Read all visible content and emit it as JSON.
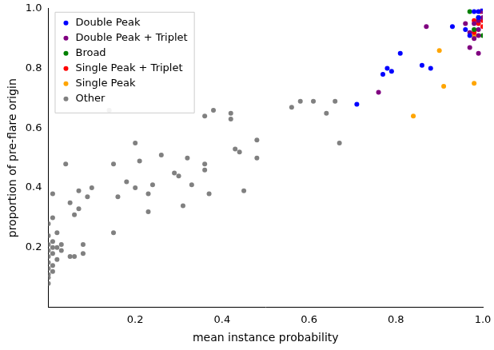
{
  "chart_data": {
    "type": "scatter",
    "x_label": "mean instance probability",
    "y_label": "proportion of pre-flare origin",
    "xlim": [
      0,
      1
    ],
    "ylim": [
      0,
      1
    ],
    "xticks": [
      0.2,
      0.4,
      0.6,
      0.8,
      {
        "value": 1,
        "label": "1.0"
      }
    ],
    "yticks": [
      0.2,
      0.4,
      0.6,
      0.8,
      {
        "value": 1,
        "label": "1.0"
      }
    ],
    "grid": false,
    "legend": "upper left",
    "marker": "circle",
    "series": [
      {
        "name": "Double Peak",
        "color": "#0000ff",
        "x": [
          0.71,
          0.77,
          0.78,
          0.79,
          0.81,
          0.86,
          0.88,
          0.93,
          0.96,
          0.97,
          0.98,
          0.99,
          1.0,
          0.99
        ],
        "values": [
          0.68,
          0.78,
          0.8,
          0.79,
          0.85,
          0.81,
          0.8,
          0.94,
          0.93,
          0.91,
          0.99,
          0.99,
          1.0,
          0.97
        ]
      },
      {
        "name": "Double Peak + Triplet",
        "color": "#800080",
        "x": [
          0.76,
          0.87,
          0.97,
          0.97,
          0.98,
          0.99,
          0.99,
          1.0,
          0.99,
          1.0,
          0.96,
          0.99,
          0.98
        ],
        "values": [
          0.72,
          0.94,
          0.92,
          0.87,
          0.95,
          0.96,
          0.85,
          0.97,
          0.93,
          0.99,
          0.95,
          0.91,
          0.9
        ]
      },
      {
        "name": "Broad",
        "color": "#008000",
        "x": [
          0.97,
          0.99,
          1.0,
          0.98
        ],
        "values": [
          0.99,
          0.97,
          0.91,
          0.93
        ]
      },
      {
        "name": "Single Peak + Triplet",
        "color": "#ff0000",
        "x": [
          0.98,
          0.99,
          1.0,
          0.995,
          0.98,
          1.0
        ],
        "values": [
          0.92,
          0.95,
          0.96,
          0.99,
          0.96,
          0.94
        ]
      },
      {
        "name": "Single Peak",
        "color": "#ffa500",
        "x": [
          0.84,
          0.9,
          0.91,
          0.98,
          0.98
        ],
        "values": [
          0.64,
          0.86,
          0.74,
          0.75,
          0.91
        ]
      },
      {
        "name": "Other",
        "color": "#808080",
        "x": [
          0.01,
          0.01,
          0.02,
          0.03,
          0.04,
          0.05,
          0.05,
          0.06,
          0.06,
          0.07,
          0.07,
          0.08,
          0.08,
          0.09,
          0.1,
          0.14,
          0.15,
          0.15,
          0.16,
          0.18,
          0.2,
          0.2,
          0.21,
          0.23,
          0.23,
          0.24,
          0.26,
          0.29,
          0.3,
          0.31,
          0.32,
          0.33,
          0.36,
          0.36,
          0.36,
          0.37,
          0.38,
          0.42,
          0.42,
          0.43,
          0.44,
          0.45,
          0.48,
          0.48,
          0.56,
          0.58,
          0.61,
          0.64,
          0.66,
          0.67,
          0.02,
          0.0,
          0.0,
          0.01,
          0.0,
          0.0,
          0.0,
          0.0,
          0.0,
          0.01,
          0.01,
          0.0,
          0.0,
          0.01,
          0.0,
          0.02,
          0.03,
          0.01
        ],
        "values": [
          0.38,
          0.3,
          0.25,
          0.21,
          0.48,
          0.35,
          0.17,
          0.31,
          0.17,
          0.39,
          0.33,
          0.18,
          0.21,
          0.37,
          0.4,
          0.66,
          0.48,
          0.25,
          0.37,
          0.42,
          0.4,
          0.55,
          0.49,
          0.32,
          0.38,
          0.41,
          0.51,
          0.45,
          0.44,
          0.34,
          0.5,
          0.41,
          0.64,
          0.48,
          0.46,
          0.38,
          0.66,
          0.65,
          0.63,
          0.53,
          0.52,
          0.39,
          0.56,
          0.5,
          0.67,
          0.69,
          0.69,
          0.65,
          0.69,
          0.55,
          0.2,
          0.21,
          0.19,
          0.18,
          0.15,
          0.13,
          0.11,
          0.1,
          0.08,
          0.14,
          0.22,
          0.24,
          0.28,
          0.12,
          0.17,
          0.16,
          0.19,
          0.2
        ]
      }
    ]
  }
}
